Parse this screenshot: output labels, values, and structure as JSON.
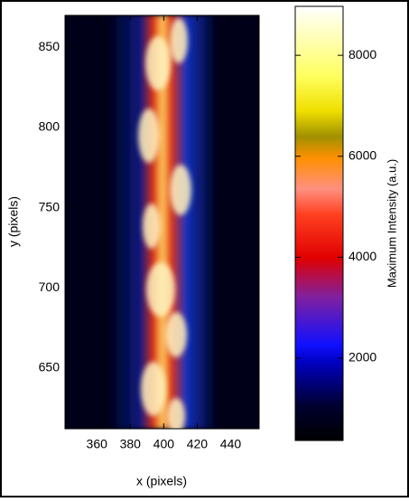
{
  "chart_data": {
    "type": "heatmap",
    "xlabel": "x (pixels)",
    "ylabel": "y (pixels)",
    "xlim": [
      341,
      457
    ],
    "ylim": [
      612,
      870
    ],
    "xticks": [
      360,
      380,
      400,
      420,
      440
    ],
    "yticks": [
      650,
      700,
      750,
      800,
      850
    ],
    "colorbar": {
      "label": "Maximum Intensity (a.u.)",
      "lim": [
        370,
        8970
      ],
      "ticks": [
        2000,
        4000,
        6000,
        8000
      ]
    }
  }
}
